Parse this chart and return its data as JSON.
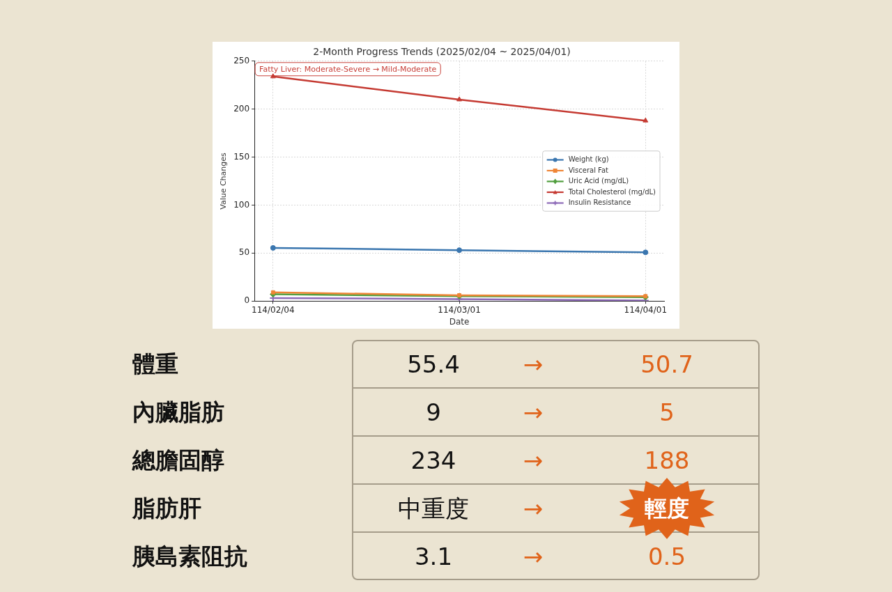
{
  "chart_data": [
    {
      "type": "line",
      "title": "2-Month Progress Trends (2025/02/04 ~ 2025/04/01)",
      "xlabel": "Date",
      "ylabel": "Value Changes",
      "categories": [
        "114/02/04",
        "114/03/01",
        "114/04/01"
      ],
      "series": [
        {
          "name": "Weight (kg)",
          "color": "#3a76af",
          "marker": "circle",
          "values": [
            55.4,
            53,
            50.7
          ]
        },
        {
          "name": "Visceral Fat",
          "color": "#ef8536",
          "marker": "square",
          "values": [
            9,
            6,
            5
          ]
        },
        {
          "name": "Uric Acid (mg/dL)",
          "color": "#519e3e",
          "marker": "diamond",
          "values": [
            7,
            5,
            4
          ]
        },
        {
          "name": "Total Cholesterol (mg/dL)",
          "color": "#c53a32",
          "marker": "triangle",
          "values": [
            234,
            210,
            188
          ]
        },
        {
          "name": "Insulin Resistance",
          "color": "#8d6ab8",
          "marker": "cross",
          "values": [
            3.1,
            2,
            0.5
          ]
        }
      ],
      "ylim": [
        0,
        250
      ],
      "yticks": [
        0,
        50,
        100,
        150,
        200,
        250
      ],
      "grid": true,
      "legend": "center right",
      "line_style": "solid",
      "annotations": [
        "Fatty Liver: Moderate-Severe → Mild-Moderate"
      ]
    },
    {
      "type": "other",
      "annotations": [
        "體重",
        "55.4",
        "→",
        "50.7",
        "內臟脂肪",
        "9",
        "→",
        "5",
        "總膽固醇",
        "234",
        "→",
        "188",
        "脂肪肝",
        "中重度",
        "→",
        "輕度",
        "胰島素阻抗",
        "3.1",
        "→",
        "0.5"
      ]
    }
  ]
}
